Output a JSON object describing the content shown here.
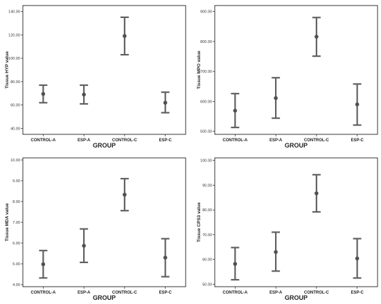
{
  "chart_data": [
    {
      "type": "errorbar",
      "xlabel": "GROUP",
      "ylabel": "Tissue HYP value",
      "categories": [
        "CONTROL-A",
        "ESP-A",
        "CONTROL-C",
        "ESP-C"
      ],
      "yticks": [
        "40.00",
        "60.00",
        "80.00",
        "100.00",
        "120.00",
        "140.00"
      ],
      "ylim": [
        35,
        145
      ],
      "values": [
        69.5,
        69.0,
        119.0,
        62.0
      ],
      "lower": [
        62.0,
        61.0,
        103.0,
        53.5
      ],
      "upper": [
        77.0,
        77.0,
        135.0,
        71.0
      ],
      "grid": false
    },
    {
      "type": "errorbar",
      "xlabel": "GROUP",
      "ylabel": "Tissue MPO value",
      "categories": [
        "CONTROL-A",
        "ESP-A",
        "CONTROL-C",
        "ESP-C"
      ],
      "yticks": [
        "500.00",
        "600.00",
        "700.00",
        "800.00",
        "900.00"
      ],
      "ylim": [
        490,
        920
      ],
      "values": [
        569,
        611,
        816,
        590
      ],
      "lower": [
        513,
        544,
        751,
        521
      ],
      "upper": [
        626,
        679,
        880,
        658
      ],
      "grid": false
    },
    {
      "type": "errorbar",
      "xlabel": "GROUP",
      "ylabel": "Tissue MDA value",
      "categories": [
        "CONTROL-A",
        "ESP-A",
        "CONTROL-C",
        "ESP-C"
      ],
      "yticks": [
        "4.00",
        "5.00",
        "6.00",
        "7.00",
        "8.00",
        "9.00",
        "10.00"
      ],
      "ylim": [
        3.9,
        10.1
      ],
      "values": [
        4.98,
        5.87,
        8.33,
        5.3
      ],
      "lower": [
        4.32,
        5.07,
        7.56,
        4.38
      ],
      "upper": [
        5.64,
        6.68,
        9.1,
        6.21
      ],
      "grid": false
    },
    {
      "type": "errorbar",
      "xlabel": "GROUP",
      "ylabel": "Tissue CPS3 value",
      "categories": [
        "CONTROL-A",
        "ESP-A",
        "CONTROL-C",
        "ESP-C"
      ],
      "yticks": [
        "50.00",
        "60.00",
        "70.00",
        "80.00",
        "90.00",
        "100.00"
      ],
      "ylim": [
        49,
        101
      ],
      "values": [
        58.2,
        63.0,
        86.7,
        60.4
      ],
      "lower": [
        51.8,
        55.3,
        79.2,
        52.5
      ],
      "upper": [
        64.8,
        71.0,
        94.2,
        68.4
      ],
      "grid": false
    }
  ],
  "colors": {
    "frame": "#000000",
    "plot_background": "#ffffff",
    "errorbar": "#606060",
    "marker": "#505050"
  }
}
